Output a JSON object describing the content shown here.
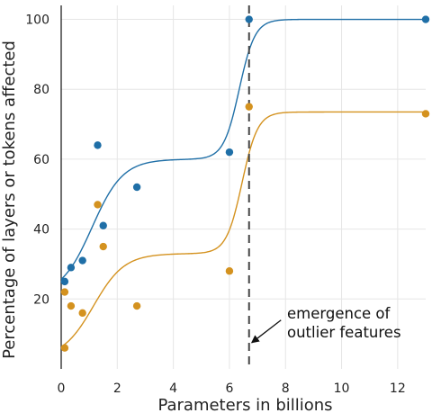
{
  "chart_data": {
    "type": "scatter",
    "title": "",
    "xlabel": "Parameters in billions",
    "ylabel": "Percentage of layers or tokens affected",
    "xlim": [
      0,
      13
    ],
    "ylim": [
      0,
      104
    ],
    "x_ticks": [
      0,
      2,
      4,
      6,
      8,
      10,
      12
    ],
    "y_ticks": [
      20,
      40,
      60,
      80,
      100
    ],
    "grid": true,
    "legend": "none",
    "series": [
      {
        "color": "#1f6fa7",
        "points": [
          [
            0.125,
            25
          ],
          [
            0.35,
            29
          ],
          [
            0.76,
            31
          ],
          [
            1.3,
            64
          ],
          [
            1.5,
            41
          ],
          [
            2.7,
            52
          ],
          [
            6.0,
            62
          ],
          [
            6.7,
            100
          ],
          [
            13.0,
            100
          ]
        ],
        "fit": {
          "lower": 21,
          "upper": 100,
          "step1_height": 39,
          "step1_center": 1.1,
          "step1_width": 0.55,
          "step2_center": 6.35,
          "step2_width": 0.28
        }
      },
      {
        "color": "#d4921f",
        "points": [
          [
            0.125,
            6
          ],
          [
            0.125,
            22
          ],
          [
            0.35,
            18
          ],
          [
            0.76,
            16
          ],
          [
            1.3,
            47
          ],
          [
            1.5,
            35
          ],
          [
            2.7,
            18
          ],
          [
            6.0,
            28
          ],
          [
            6.7,
            75
          ],
          [
            13.0,
            73
          ]
        ],
        "fit": {
          "lower": 3,
          "upper": 73.5,
          "step1_height": 30,
          "step1_center": 1.15,
          "step1_width": 0.55,
          "step2_center": 6.45,
          "step2_width": 0.28
        }
      }
    ],
    "threshold": {
      "x": 6.7,
      "style": "dashed"
    },
    "annotation": {
      "lines": [
        "emergence of",
        "outlier features"
      ],
      "arrow_target": [
        6.7,
        7
      ],
      "text_anchor": [
        8.0,
        15
      ]
    }
  }
}
